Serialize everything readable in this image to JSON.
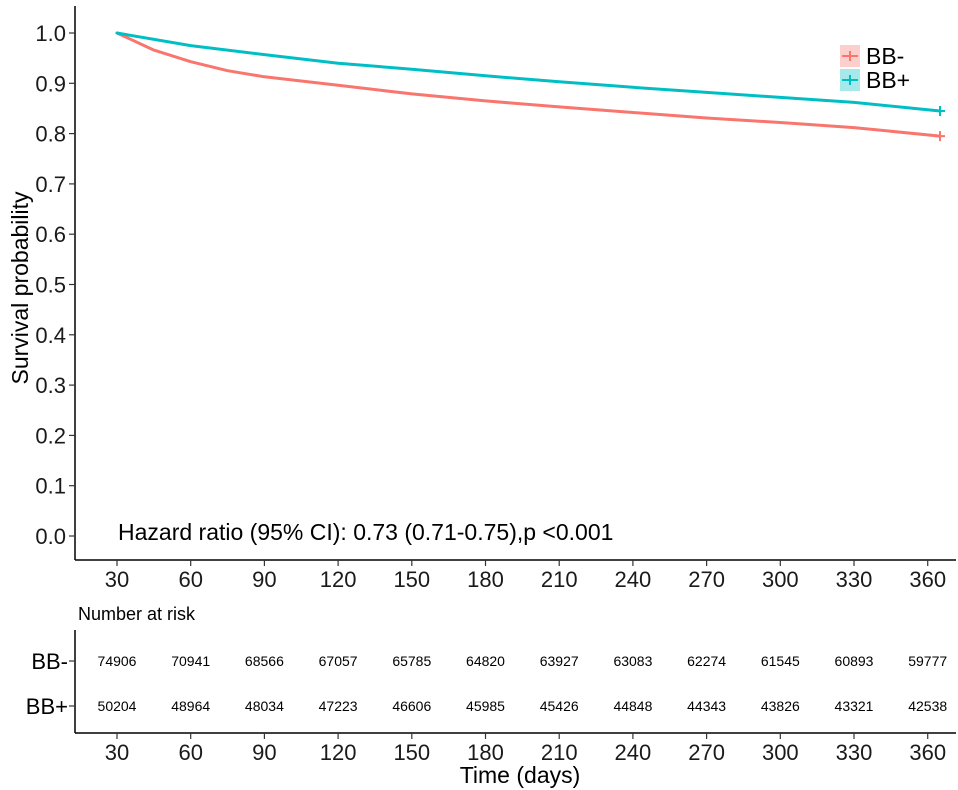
{
  "chart_data": {
    "type": "line",
    "ylabel": "Survival probability",
    "xlabel": "Time (days)",
    "xlim": [
      30,
      365
    ],
    "ylim": [
      0,
      1.0
    ],
    "x_ticks": [
      "30",
      "60",
      "90",
      "120",
      "150",
      "180",
      "210",
      "240",
      "270",
      "300",
      "330",
      "360"
    ],
    "y_ticks": [
      "0.0",
      "0.1",
      "0.2",
      "0.3",
      "0.4",
      "0.5",
      "0.6",
      "0.7",
      "0.8",
      "0.9",
      "1.0"
    ],
    "grid": false,
    "legend_position": "top-right",
    "annotation": "Hazard ratio (95% CI): 0.73 (0.71-0.75),p <0.001",
    "series": [
      {
        "name": "BB-",
        "color": "#F8766D",
        "x": [
          30,
          45,
          60,
          75,
          90,
          120,
          150,
          180,
          210,
          240,
          270,
          300,
          330,
          365
        ],
        "y": [
          1.0,
          0.966,
          0.943,
          0.925,
          0.913,
          0.896,
          0.879,
          0.865,
          0.853,
          0.842,
          0.831,
          0.822,
          0.812,
          0.795
        ]
      },
      {
        "name": "BB+",
        "color": "#00BFC4",
        "x": [
          30,
          60,
          90,
          120,
          150,
          180,
          210,
          240,
          270,
          300,
          330,
          365
        ],
        "y": [
          1.0,
          0.975,
          0.957,
          0.94,
          0.928,
          0.915,
          0.903,
          0.892,
          0.882,
          0.872,
          0.862,
          0.845
        ]
      }
    ]
  },
  "risk_table": {
    "title": "Number at risk",
    "times": [
      "30",
      "60",
      "90",
      "120",
      "150",
      "180",
      "210",
      "240",
      "270",
      "300",
      "330",
      "360"
    ],
    "rows": [
      {
        "group": "BB-",
        "values": [
          "74906",
          "70941",
          "68566",
          "67057",
          "65785",
          "64820",
          "63927",
          "63083",
          "62274",
          "61545",
          "60893",
          "59777"
        ]
      },
      {
        "group": "BB+",
        "values": [
          "50204",
          "48964",
          "48034",
          "47223",
          "46606",
          "45985",
          "45426",
          "44848",
          "44343",
          "43826",
          "43321",
          "42538"
        ]
      }
    ]
  }
}
